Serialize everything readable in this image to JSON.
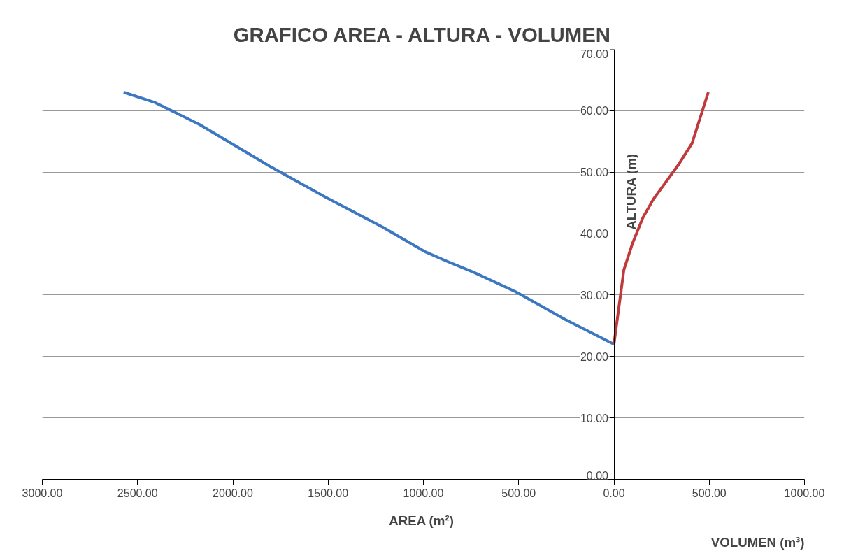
{
  "chart_data": {
    "type": "line",
    "title": "GRAFICO AREA - ALTURA - VOLUMEN",
    "xlabel": "AREA  (m²)",
    "ylabel": "ALTURA (m)",
    "annotations": [
      "VOLUMEN (m³)"
    ],
    "xlim": [
      -3000,
      1000
    ],
    "xticks": [
      {
        "value": -3000,
        "label": "3000.00"
      },
      {
        "value": -2500,
        "label": "2500.00"
      },
      {
        "value": -2000,
        "label": "2000.00"
      },
      {
        "value": -1500,
        "label": "1500.00"
      },
      {
        "value": -1000,
        "label": "1000.00"
      },
      {
        "value": -500,
        "label": "500.00"
      },
      {
        "value": 0,
        "label": "0.00"
      },
      {
        "value": 500,
        "label": "500.00"
      },
      {
        "value": 1000,
        "label": "1000.00"
      }
    ],
    "ylim": [
      0,
      70
    ],
    "yticks": [
      {
        "value": 0,
        "label": "0.00"
      },
      {
        "value": 10,
        "label": "10.00"
      },
      {
        "value": 20,
        "label": "20.00"
      },
      {
        "value": 30,
        "label": "30.00"
      },
      {
        "value": 40,
        "label": "40.00"
      },
      {
        "value": 50,
        "label": "50.00"
      },
      {
        "value": 60,
        "label": "60.00"
      },
      {
        "value": 70,
        "label": "70.00"
      }
    ],
    "grid": "y",
    "line_style": "solid",
    "marker": "none",
    "series": [
      {
        "color": "#3b78c1",
        "x": [
          -2573,
          -2414,
          -2177,
          -1993,
          -1808,
          -1512,
          -1216,
          -994,
          -884,
          -736,
          -514,
          -255,
          0
        ],
        "values": [
          63.0,
          61.4,
          57.8,
          54.4,
          51.0,
          45.9,
          41.1,
          37.1,
          35.6,
          33.7,
          30.5,
          26.0,
          22.0
        ]
      },
      {
        "color": "#c0393b",
        "x": [
          0,
          52,
          96,
          152,
          207,
          336,
          410,
          495
        ],
        "values": [
          22.0,
          34.1,
          38.3,
          42.6,
          45.6,
          51.1,
          54.7,
          63.0
        ]
      }
    ]
  }
}
